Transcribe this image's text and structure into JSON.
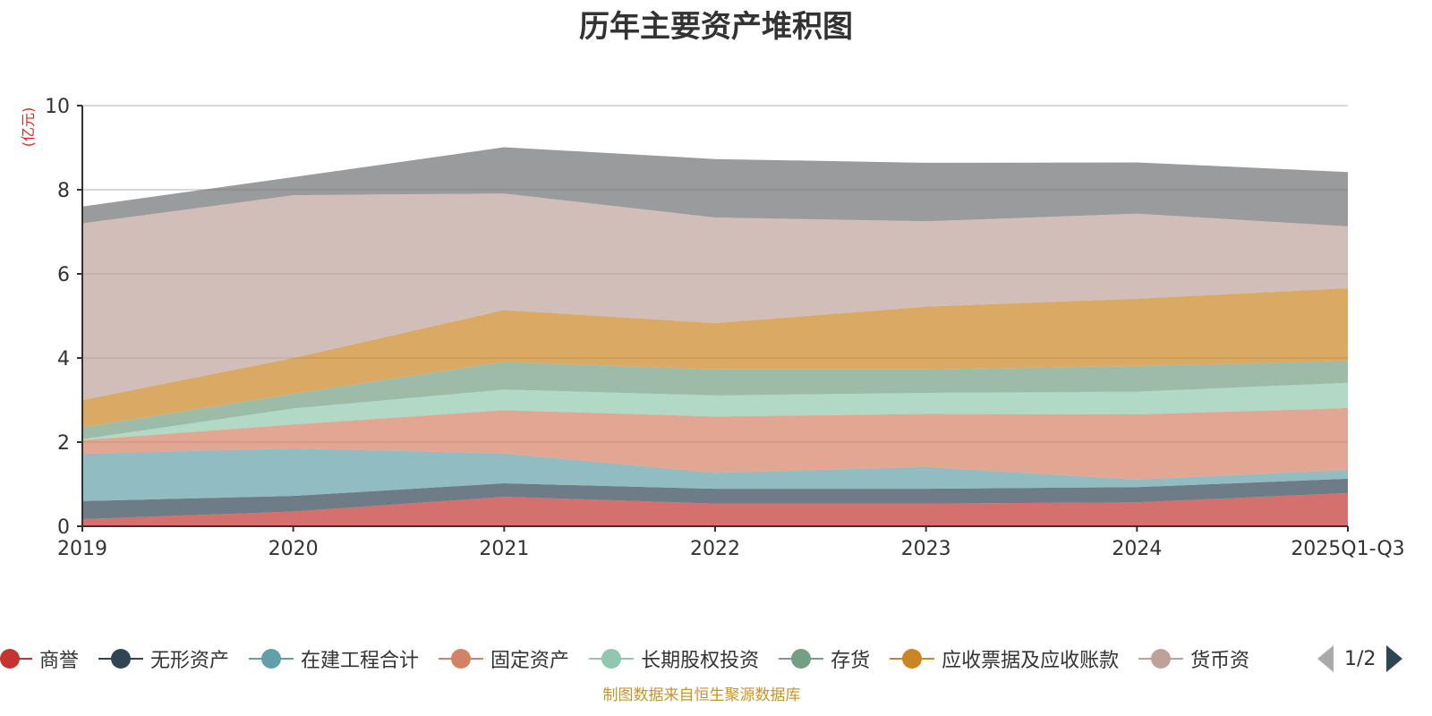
{
  "chart_data": {
    "type": "area",
    "stacked": true,
    "title": "历年主要资产堆积图",
    "ylabel": "(亿元)",
    "xlabel": "",
    "categories": [
      "2019",
      "2020",
      "2021",
      "2022",
      "2023",
      "2024",
      "2025Q1-Q3"
    ],
    "ylim": [
      0,
      10
    ],
    "yticks": [
      0,
      2,
      4,
      6,
      8,
      10
    ],
    "grid": true,
    "legend_position": "bottom",
    "series": [
      {
        "name": "商誉",
        "color": "#c23531",
        "values": [
          0.17,
          0.35,
          0.7,
          0.54,
          0.54,
          0.57,
          0.79
        ]
      },
      {
        "name": "无形资产",
        "color": "#2f4554",
        "values": [
          0.43,
          0.37,
          0.32,
          0.35,
          0.35,
          0.36,
          0.34
        ]
      },
      {
        "name": "在建工程合计",
        "color": "#61a0a8",
        "values": [
          1.12,
          1.13,
          0.71,
          0.38,
          0.52,
          0.18,
          0.21
        ]
      },
      {
        "name": "固定资产",
        "color": "#d48265",
        "values": [
          0.33,
          0.57,
          1.03,
          1.34,
          1.26,
          1.55,
          1.47
        ]
      },
      {
        "name": "长期股权投资",
        "color": "#91c7ae",
        "values": [
          0.02,
          0.38,
          0.49,
          0.5,
          0.5,
          0.54,
          0.6
        ]
      },
      {
        "name": "存货",
        "color": "#749f83",
        "values": [
          0.28,
          0.35,
          0.66,
          0.62,
          0.56,
          0.61,
          0.52
        ]
      },
      {
        "name": "应收票据及应收账款",
        "color": "#ca8622",
        "values": [
          0.65,
          0.85,
          1.23,
          1.1,
          1.49,
          1.6,
          1.73
        ]
      },
      {
        "name": "货币资",
        "color": "#bda29a",
        "values": [
          4.2,
          3.87,
          2.77,
          2.51,
          2.03,
          2.02,
          1.47
        ]
      },
      {
        "name": "",
        "color": "#6e7074",
        "values": [
          0.4,
          0.43,
          1.1,
          1.39,
          1.39,
          1.22,
          1.29
        ]
      }
    ]
  },
  "legend": {
    "items": [
      "商誉",
      "无形资产",
      "在建工程合计",
      "固定资产",
      "长期股权投资",
      "存货",
      "应收票据及应收账款",
      "货币资"
    ],
    "page": "1/2"
  },
  "footer": "制图数据来自恒生聚源数据库"
}
